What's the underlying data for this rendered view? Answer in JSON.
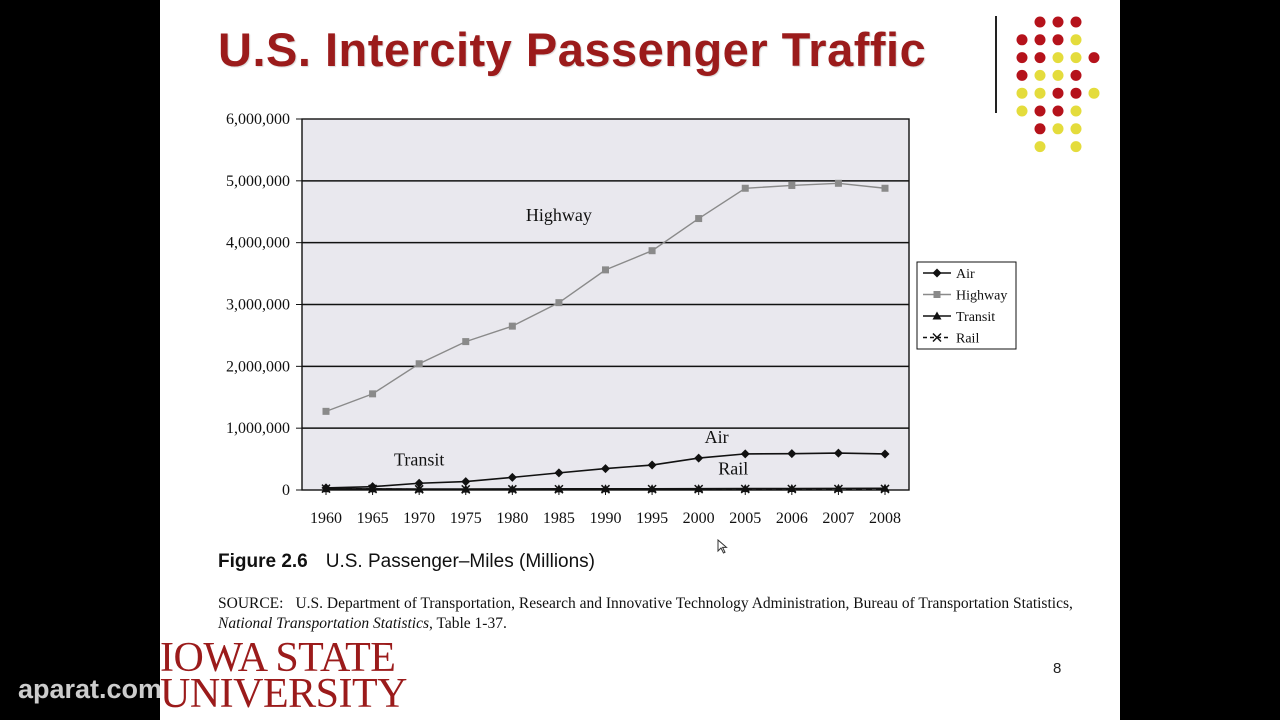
{
  "slide": {
    "title": "U.S. Intercity Passenger Traffic",
    "figure_number": "Figure 2.6",
    "figure_caption": "U.S. Passenger–Miles (Millions)",
    "source_label": "SOURCE:",
    "source_text": "U.S. Department of Transportation, Research and Innovative Technology Administration, Bureau of Transportation Statistics,",
    "source_italic": "National Transportation Statistics",
    "source_tail": ", Table 1-37.",
    "page_number": "8",
    "logo_line1": "IOWA STATE",
    "logo_line2": "UNIVERSITY",
    "watermark": "aparat.com"
  },
  "colors": {
    "title": "#9b1b1b",
    "plot_bg": "#e9e8ee",
    "highway": "#8a8a8a",
    "air": "#111111",
    "dot_red": "#b5121b",
    "dot_yellow": "#e4dc3c"
  },
  "chart_data": {
    "type": "line",
    "categories": [
      "1960",
      "1965",
      "1970",
      "1975",
      "1980",
      "1985",
      "1990",
      "1995",
      "2000",
      "2005",
      "2006",
      "2007",
      "2008"
    ],
    "ylim": [
      0,
      6000000
    ],
    "yticks": [
      {
        "value": 0,
        "label": "0"
      },
      {
        "value": 1000000,
        "label": "1,000,000"
      },
      {
        "value": 2000000,
        "label": "2,000,000"
      },
      {
        "value": 3000000,
        "label": "3,000,000"
      },
      {
        "value": 4000000,
        "label": "4,000,000"
      },
      {
        "value": 5000000,
        "label": "5,000,000"
      },
      {
        "value": 6000000,
        "label": "6,000,000"
      }
    ],
    "grid": true,
    "legend_position": "right",
    "series": [
      {
        "name": "Air",
        "marker": "diamond",
        "dash": false,
        "color": "#111111",
        "values": [
          34000,
          54000,
          109000,
          136000,
          204000,
          277000,
          346000,
          404000,
          516000,
          584000,
          588000,
          597000,
          583000
        ]
      },
      {
        "name": "Highway",
        "marker": "square",
        "dash": false,
        "color": "#8a8a8a",
        "values": [
          1272000,
          1555000,
          2042000,
          2400000,
          2650000,
          3030000,
          3560000,
          3870000,
          4390000,
          4880000,
          4925000,
          4960000,
          4880000
        ]
      },
      {
        "name": "Transit",
        "marker": "triangle",
        "dash": false,
        "color": "#111111",
        "values": [
          20000,
          18000,
          16000,
          15000,
          17000,
          19000,
          20000,
          20000,
          22000,
          23000,
          24000,
          26000,
          28000
        ]
      },
      {
        "name": "Rail",
        "marker": "x",
        "dash": true,
        "color": "#111111",
        "values": [
          22000,
          17000,
          11000,
          10000,
          11000,
          12000,
          13000,
          14000,
          14000,
          16000,
          16000,
          16000,
          17000
        ]
      }
    ],
    "annotations": [
      {
        "text": "Highway",
        "category": "1985",
        "value": 4350000
      },
      {
        "text": "Air",
        "category": "2000",
        "value": 760000
      },
      {
        "text": "Transit",
        "category": "1970",
        "value": 400000
      },
      {
        "text": "Rail",
        "category": "2005",
        "value": 250000
      }
    ]
  }
}
